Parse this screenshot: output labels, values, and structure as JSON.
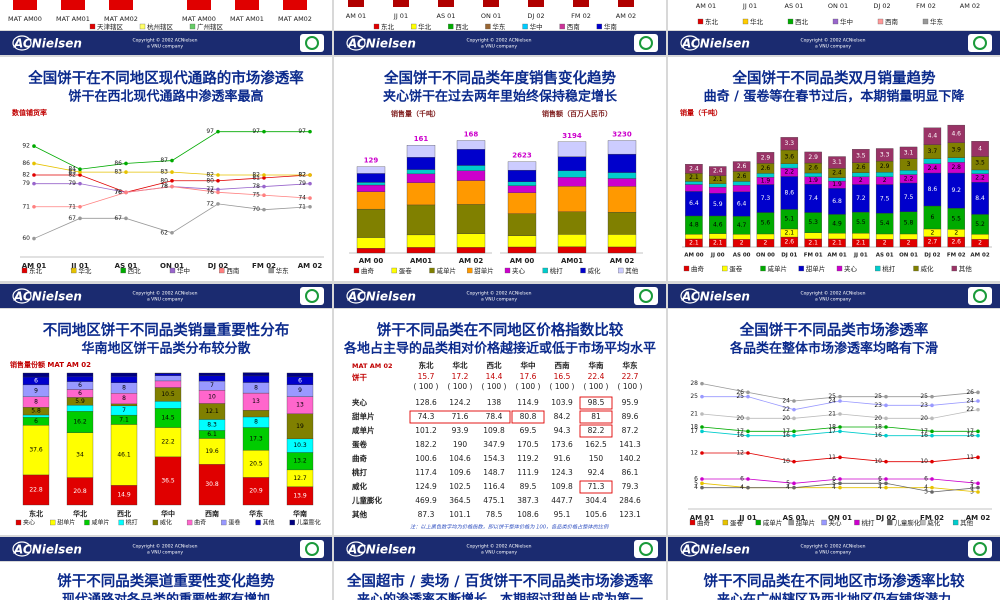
{
  "banner": {
    "logo": "ACNielsen",
    "copyright": "Copyright © 2002 ACNielsen",
    "company": "a VNU company"
  },
  "top_slides": [
    {
      "categories": [
        "MAT AM00",
        "MAT AM01",
        "MAT AM02",
        "MAT AM00",
        "MAT AM01",
        "MAT AM02"
      ],
      "legend": [
        {
          "name": "天津辖区",
          "color": "#e00000"
        },
        {
          "name": "杭州辖区",
          "color": "#ffff66"
        },
        {
          "name": "广州辖区",
          "color": "#66cc66"
        }
      ]
    },
    {
      "categories": [
        "AM 01",
        "JJ 01",
        "AS 01",
        "ON 01",
        "DJ 02",
        "FM 02",
        "AM 02"
      ],
      "legend": [
        {
          "name": "东北",
          "color": "#e00000"
        },
        {
          "name": "华北",
          "color": "#ffff00"
        },
        {
          "name": "西北",
          "color": "#00aa00"
        },
        {
          "name": "华东",
          "color": "#996633"
        },
        {
          "name": "华中",
          "color": "#00ccff"
        },
        {
          "name": "西南",
          "color": "#cc3399"
        },
        {
          "name": "华南",
          "color": "#0000cc"
        }
      ]
    },
    {
      "categories": [
        "AM 01",
        "JJ 01",
        "AS 01",
        "ON 01",
        "DJ 02",
        "FM 02",
        "AM 02"
      ],
      "legend": [
        {
          "name": "东北",
          "color": "#e00000"
        },
        {
          "name": "华北",
          "color": "#ffcc00"
        },
        {
          "name": "西北",
          "color": "#00aa00"
        },
        {
          "name": "华中",
          "color": "#9966cc"
        },
        {
          "name": "西南",
          "color": "#ff9999"
        },
        {
          "name": "华东",
          "color": "#999999"
        }
      ]
    }
  ],
  "slides": [
    {
      "type": "line",
      "title": "全国饼干在不同地区现代通路的市场渗透率",
      "subtitle": "饼干在西北现代通路中渗透率最高",
      "y_label": "数值铺货率",
      "categories": [
        "AM 01",
        "JJ 01",
        "AS 01",
        "ON 01",
        "DJ 02",
        "FM 02",
        "AM 02"
      ],
      "ylim": [
        55,
        100
      ],
      "series": [
        {
          "name": "东北",
          "color": "#e00000",
          "values": [
            82,
            82,
            76,
            80,
            80,
            81,
            82
          ]
        },
        {
          "name": "华北",
          "color": "#e6c200",
          "values": [
            86,
            83,
            83,
            83,
            82,
            82,
            82
          ]
        },
        {
          "name": "西北",
          "color": "#00aa00",
          "values": [
            92,
            84,
            86,
            87,
            97,
            97,
            97
          ]
        },
        {
          "name": "华中",
          "color": "#9966cc",
          "values": [
            79,
            79,
            76,
            78,
            77,
            78,
            79
          ]
        },
        {
          "name": "西南",
          "color": "#ff8080",
          "values": [
            71,
            71,
            76,
            78,
            76,
            75,
            74
          ]
        },
        {
          "name": "华东",
          "color": "#999999",
          "values": [
            60,
            67,
            67,
            62,
            72,
            70,
            71
          ]
        }
      ]
    },
    {
      "type": "share_bar",
      "title": "全国饼干不同品类年度销售变化趋势",
      "subtitle": "夹心饼干在过去两年里始终保持稳定增长",
      "legend": [
        {
          "name": "曲奇",
          "color": "#e00000"
        },
        {
          "name": "蛋卷",
          "color": "#ffff00"
        },
        {
          "name": "咸单片",
          "color": "#808000"
        },
        {
          "name": "甜单片",
          "color": "#ff9900"
        },
        {
          "name": "夹心",
          "color": "#cc00cc"
        },
        {
          "name": "桃打",
          "color": "#00cccc"
        },
        {
          "name": "威化",
          "color": "#0000cc"
        },
        {
          "name": "其他",
          "color": "#ccccff"
        }
      ],
      "panels": [
        {
          "label": "销售量（千吨）",
          "categories": [
            "AM 00",
            "AM01",
            "AM 02"
          ],
          "totals": [
            129,
            161,
            168
          ],
          "shares": [
            [
              5.5,
              5.2,
              5.0
            ],
            [
              12.4,
              11.6,
              12.1
            ],
            [
              32.9,
              27.8,
              26.1
            ],
            [
              20.1,
              20.6,
              21.2
            ],
            [
              7.8,
              8.2,
              8.8
            ],
            [
              3.0,
              4.0,
              4.6
            ],
            [
              10.4,
              11.4,
              14.4
            ],
            [
              7.9,
              11.2,
              7.8
            ]
          ]
        },
        {
          "label": "销售额（百万人民币）",
          "categories": [
            "AM 00",
            "AM01",
            "AM 02"
          ],
          "totals": [
            2623,
            3194,
            3230
          ],
          "shares": [
            [
              6.6,
              5.7,
              5.4
            ],
            [
              12.2,
              11.0,
              11.1
            ],
            [
              24.3,
              20.4,
              19.8
            ],
            [
              22.8,
              22.8,
              22.9
            ],
            [
              7.8,
              8.1,
              7.0
            ],
            [
              4.2,
              6.0,
              5.3
            ],
            [
              12.8,
              12.6,
              16.4
            ],
            [
              9.3,
              13.4,
              12.1
            ]
          ]
        }
      ]
    },
    {
      "type": "stacked_bar",
      "title": "全国饼干不同品类双月销量趋势",
      "subtitle": "曲奇 / 蛋卷等在春节过后，本期销量明显下降",
      "y_label": "销量（千吨）",
      "categories": [
        "AM 00",
        "JJ 00",
        "AS 00",
        "ON 00",
        "DJ 01",
        "FM 01",
        "AM 01",
        "JJ 01",
        "AS 01",
        "ON 01",
        "DJ 02",
        "FM 02",
        "AM 02"
      ],
      "series": [
        {
          "name": "曲奇",
          "color": "#e00000",
          "values": [
            2.1,
            2.1,
            2.0,
            2.0,
            2.6,
            2.1,
            2.1,
            2.1,
            2.0,
            2.0,
            2.7,
            2.6,
            2.0
          ]
        },
        {
          "name": "蛋卷",
          "color": "#ffff00",
          "values": [
            1.2,
            1.4,
            1.3,
            1.4,
            2.1,
            1.6,
            1.5,
            1.5,
            1.4,
            1.4,
            2.0,
            2.0,
            1.3
          ]
        },
        {
          "name": "咸单片",
          "color": "#00aa00",
          "values": [
            4.8,
            4.6,
            4.7,
            5.6,
            5.1,
            5.3,
            4.9,
            5.5,
            5.4,
            5.8,
            6.0,
            5.5,
            5.2
          ]
        },
        {
          "name": "甜单片",
          "color": "#0000cc",
          "values": [
            6.4,
            5.9,
            6.4,
            7.3,
            8.6,
            7.4,
            6.8,
            7.2,
            7.5,
            7.5,
            8.6,
            9.2,
            8.4
          ]
        },
        {
          "name": "夹心",
          "color": "#cc00cc",
          "values": [
            1.8,
            1.6,
            1.7,
            1.9,
            2.2,
            1.9,
            1.9,
            2.0,
            2.0,
            2.2,
            2.4,
            2.8,
            2.2
          ]
        },
        {
          "name": "桃打",
          "color": "#00cccc",
          "values": [
            0.8,
            0.9,
            1.0,
            1.0,
            1.1,
            1.0,
            0.9,
            1.1,
            1.2,
            1.1,
            1.3,
            1.2,
            1.0
          ]
        },
        {
          "name": "威化",
          "color": "#808000",
          "values": [
            2.1,
            2.1,
            2.6,
            2.6,
            3.6,
            2.6,
            2.4,
            2.6,
            2.9,
            3.0,
            3.7,
            3.9,
            3.5
          ]
        },
        {
          "name": "其他",
          "color": "#993366",
          "values": [
            2.4,
            2.4,
            2.6,
            2.9,
            3.3,
            2.9,
            3.1,
            3.5,
            3.3,
            3.1,
            4.4,
            4.6,
            4.0
          ]
        }
      ]
    },
    {
      "type": "percent_bar",
      "title": "不同地区饼干不同品类销量重要性分布",
      "subtitle": "华南地区饼干品类分布较分散",
      "y_label": "销售量份额   MAT AM 02",
      "categories": [
        "东北",
        "华北",
        "西北",
        "华中",
        "西南",
        "华东",
        "华南"
      ],
      "series": [
        {
          "name": "夹心",
          "color": "#e00000",
          "values": [
            22.8,
            20.8,
            14.9,
            36.5,
            30.8,
            20.9,
            13.9
          ]
        },
        {
          "name": "甜单片",
          "color": "#ffff00",
          "values": [
            37.6,
            34,
            46.1,
            22.2,
            19.6,
            20.5,
            12.7
          ]
        },
        {
          "name": "咸单片",
          "color": "#00cc00",
          "values": [
            6,
            16.2,
            7.1,
            14.5,
            6.1,
            17.3,
            13.2
          ]
        },
        {
          "name": "桃打",
          "color": "#00ffff",
          "values": [
            1.8,
            4.6,
            7,
            5.3,
            8.3,
            8,
            10.3
          ]
        },
        {
          "name": "威化",
          "color": "#808000",
          "values": [
            5.8,
            5.9,
            1.5,
            10.5,
            12.1,
            5.1,
            19
          ]
        },
        {
          "name": "曲奇",
          "color": "#ff66cc",
          "values": [
            8,
            6,
            8,
            5,
            10,
            13,
            13
          ]
        },
        {
          "name": "蛋卷",
          "color": "#9999ff",
          "values": [
            9,
            6,
            8,
            4,
            7,
            8,
            9
          ]
        },
        {
          "name": "其他",
          "color": "#0000cc",
          "values": [
            6,
            4,
            5,
            1.5,
            4,
            5,
            6
          ]
        },
        {
          "name": "儿童膨化",
          "color": "#000080",
          "values": [
            3,
            2.5,
            2.4,
            0.5,
            2.1,
            2.5,
            2.9
          ]
        }
      ]
    },
    {
      "type": "table",
      "title": "饼干不同品类在不同地区价格指数比较",
      "subtitle": "各地占主导的品类相对价格越接近或低于市场平均水平",
      "corner": "MAT AM 02",
      "columns": [
        "东北",
        "华北",
        "西北",
        "华中",
        "西南",
        "华南",
        "华东"
      ],
      "total_row": {
        "label": "饼干",
        "values": [
          15.7,
          17.2,
          14.4,
          17.6,
          16.5,
          22.4,
          22.7
        ],
        "base": "( 100 )"
      },
      "rows": [
        {
          "label": "夹心",
          "values": [
            128.6,
            124.2,
            138,
            114.9,
            103.9,
            98.5,
            95.9
          ]
        },
        {
          "label": "甜单片",
          "values": [
            74.3,
            71.6,
            78.4,
            80.8,
            84.2,
            81,
            89.6
          ]
        },
        {
          "label": "咸单片",
          "values": [
            101.2,
            93.9,
            109.8,
            69.5,
            94.3,
            82.2,
            87.2
          ]
        },
        {
          "label": "蛋卷",
          "values": [
            182.2,
            190,
            347.9,
            170.5,
            173.6,
            162.5,
            141.3
          ]
        },
        {
          "label": "曲奇",
          "values": [
            100.6,
            104.6,
            154.3,
            119.2,
            91.6,
            150,
            140.2
          ]
        },
        {
          "label": "桃打",
          "values": [
            117.4,
            109.6,
            148.7,
            111.9,
            124.3,
            92.4,
            86.1
          ]
        },
        {
          "label": "威化",
          "values": [
            124.9,
            102.5,
            116.4,
            89.5,
            109.8,
            71.3,
            79.3
          ]
        },
        {
          "label": "儿童膨化",
          "values": [
            469.9,
            364.5,
            475.1,
            387.3,
            447.7,
            304.4,
            284.6
          ]
        },
        {
          "label": "其他",
          "values": [
            87.3,
            101.1,
            78.5,
            108.6,
            95.1,
            105.6,
            123.1
          ]
        }
      ],
      "note": "注：以上黑色数字均为价格指数，即以饼干整体价格为 100，各品类价格占整体的比例"
    },
    {
      "type": "line",
      "title": "全国饼干不同品类市场渗透率",
      "subtitle": "各品类在整体市场渗透率均略有下滑",
      "categories": [
        "AM 01",
        "JJ 01",
        "AS 01",
        "ON 01",
        "DJ 02",
        "FM 02",
        "AM 02"
      ],
      "ylim": [
        0,
        30
      ],
      "series": [
        {
          "name": "曲奇",
          "color": "#e00000",
          "values": [
            12,
            12,
            10,
            11,
            10,
            10,
            11
          ]
        },
        {
          "name": "蛋卷",
          "color": "#e6c200",
          "values": [
            5,
            4,
            4,
            4,
            4,
            4,
            3
          ]
        },
        {
          "name": "咸单片",
          "color": "#00aa00",
          "values": [
            18,
            17,
            17,
            18,
            18,
            17,
            17
          ]
        },
        {
          "name": "甜单片",
          "color": "#999999",
          "values": [
            28,
            26,
            24,
            25,
            25,
            25,
            26
          ]
        },
        {
          "name": "夹心",
          "color": "#9999ff",
          "values": [
            25,
            25,
            22,
            24,
            23,
            23,
            24
          ]
        },
        {
          "name": "桃打",
          "color": "#cc00cc",
          "values": [
            6,
            6,
            5,
            6,
            6,
            6,
            5
          ]
        },
        {
          "name": "儿童膨化",
          "color": "#666666",
          "values": [
            4,
            4,
            4,
            5,
            5,
            3,
            4
          ]
        },
        {
          "name": "威化",
          "color": "#bbbbbb",
          "values": [
            21,
            20,
            20,
            21,
            20,
            20,
            22
          ]
        },
        {
          "name": "其他",
          "color": "#00cccc",
          "values": [
            17,
            16,
            16,
            17,
            16,
            16,
            16
          ]
        }
      ]
    }
  ],
  "bottom_slides": [
    {
      "title": "饼干不同品类渠道重要性变化趋势",
      "subtitle": "现代通路对各品类的重要性都有增加"
    },
    {
      "title": "全国超市 / 卖场 / 百货饼干不同品类市场渗透率",
      "subtitle": "夹心的渗透率不断增长，本期超过甜单片成为第一"
    },
    {
      "title": "饼干不同品类在不同地区市场渗透率比较",
      "subtitle": "夹心在广州辖区及西北地区仍有铺货潜力"
    }
  ]
}
